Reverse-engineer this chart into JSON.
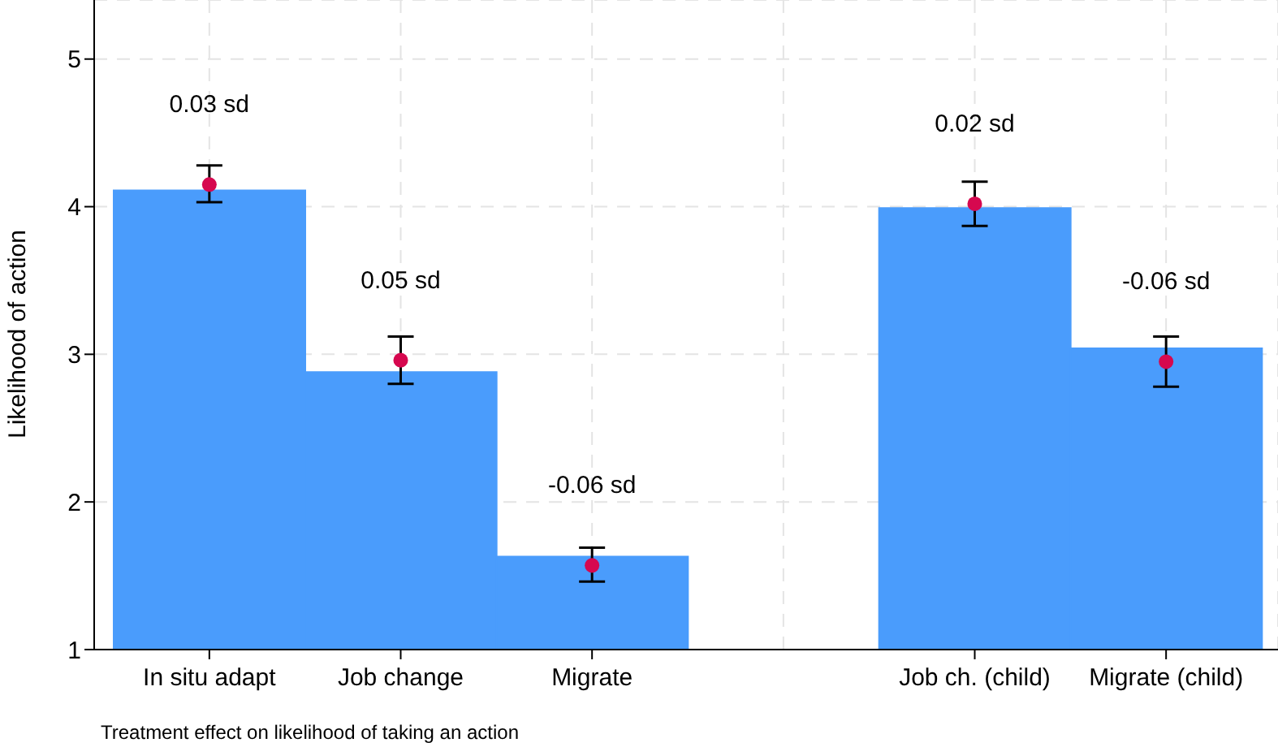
{
  "chart_data": {
    "type": "bar",
    "ylabel": "Likelihood of action",
    "categories": [
      "In situ adapt",
      "Job change",
      "Migrate",
      null,
      "Job ch. (child)",
      "Migrate (child)"
    ],
    "series": [
      {
        "color": "#4a9cfc",
        "values": [
          4.11,
          2.88,
          1.63,
          null,
          3.99,
          3.04
        ]
      },
      {
        "type": "scatter",
        "color": "#d6084f",
        "x": [
          "In situ adapt",
          "Job change",
          "Migrate",
          "Job ch. (child)",
          "Migrate (child)"
        ],
        "values": [
          4.15,
          2.96,
          1.57,
          4.02,
          2.95
        ],
        "errors": [
          [
            4.03,
            4.28
          ],
          [
            2.8,
            3.12
          ],
          [
            1.46,
            1.69
          ],
          [
            3.87,
            4.17
          ],
          [
            2.78,
            3.12
          ]
        ]
      }
    ],
    "ylim": [
      1,
      5.4
    ],
    "yticks": [
      1,
      2,
      3,
      4,
      5
    ],
    "grid": true,
    "legend": false,
    "marker": "circle",
    "annotations": [
      "0.03 sd",
      "0.05 sd",
      "-0.06 sd",
      "0.02 sd",
      "-0.06 sd",
      "Treatment effect on likelihood of taking an action"
    ]
  }
}
